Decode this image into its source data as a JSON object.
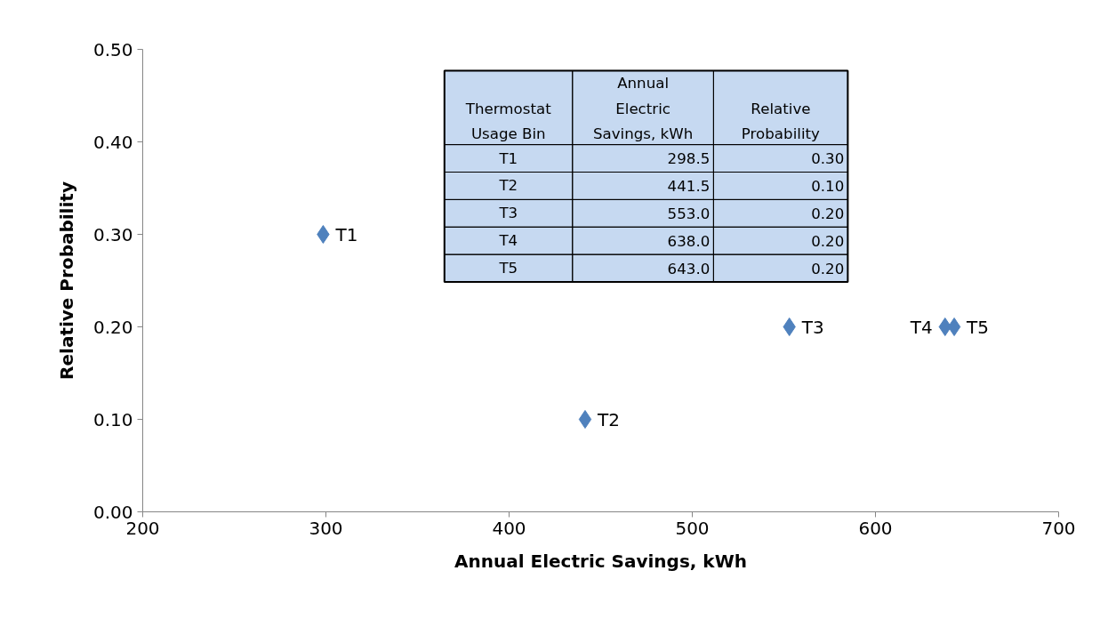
{
  "chart_data": {
    "type": "scatter",
    "xlabel": "Annual Electric Savings, kWh",
    "ylabel": "Relative Probability",
    "x": [
      298.5,
      441.5,
      553.0,
      638.0,
      643.0
    ],
    "series": [
      {
        "color": "#4f81bd",
        "values": [
          0.3,
          0.1,
          0.2,
          0.2,
          0.2
        ]
      }
    ],
    "xlim": [
      200,
      700
    ],
    "xticks": [
      200,
      300,
      400,
      500,
      600,
      700
    ],
    "ylim": [
      0,
      0.5
    ],
    "yticks": [
      {
        "value": 0,
        "label": "0.00"
      },
      {
        "value": 0.1,
        "label": "0.10"
      },
      {
        "value": 0.2,
        "label": "0.20"
      },
      {
        "value": 0.3,
        "label": "0.30"
      },
      {
        "value": 0.4,
        "label": "0.40"
      },
      {
        "value": 0.5,
        "label": "0.50"
      }
    ],
    "marker": "diamond",
    "grid": false,
    "annotations": [
      "Thermostat Usage Bin",
      "Annual Electric Savings, kWh",
      "Relative Probability",
      "298.5",
      "441.5",
      "553.0",
      "638.0",
      "643.0",
      "0.30",
      "0.10",
      "0.20",
      "0.20",
      "0.20",
      {
        "text": "T1",
        "x": 298.5,
        "y": 0.3
      },
      {
        "text": "T2",
        "x": 441.5,
        "y": 0.1
      },
      {
        "text": "T3",
        "x": 553.0,
        "y": 0.2
      },
      {
        "text": "T4",
        "x": 638.0,
        "y": 0.2
      },
      {
        "text": "T5",
        "x": 643.0,
        "y": 0.2
      }
    ]
  }
}
